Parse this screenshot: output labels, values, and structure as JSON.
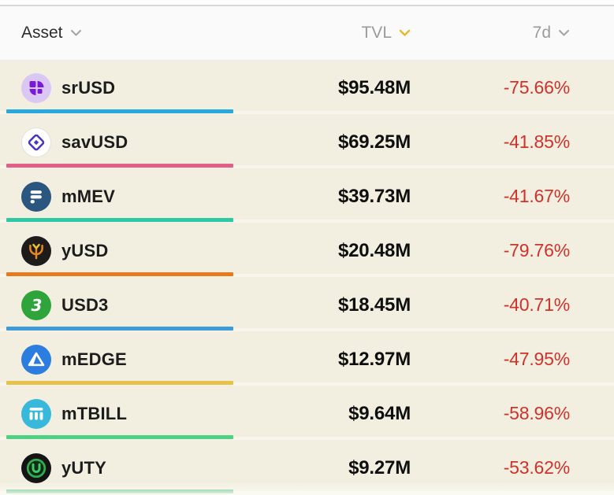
{
  "columns": [
    {
      "label": "Asset",
      "sort_icon": "chevron-down-icon",
      "sort_active": false
    },
    {
      "label": "TVL",
      "sort_icon": "chevron-down-icon",
      "sort_active": true
    },
    {
      "label": "7d",
      "sort_icon": "chevron-down-icon",
      "sort_active": false
    }
  ],
  "rows": [
    {
      "name": "srUSD",
      "tvl": "$95.48M",
      "change_7d": "-75.66%",
      "underline_color": "#29a8e0",
      "icon": "srusd-logo",
      "icon_bg": "#dbc7f3",
      "icon_fg": "#7a1ad8"
    },
    {
      "name": "savUSD",
      "tvl": "$69.25M",
      "change_7d": "-41.85%",
      "underline_color": "#e25e84",
      "icon": "savusd-logo",
      "icon_bg": "#ffffff",
      "icon_fg": "#4836c0"
    },
    {
      "name": "mMEV",
      "tvl": "$39.73M",
      "change_7d": "-41.67%",
      "underline_color": "#2dc9a2",
      "icon": "mmev-logo",
      "icon_bg": "#2b5680",
      "icon_fg": "#ffffff"
    },
    {
      "name": "yUSD",
      "tvl": "$20.48M",
      "change_7d": "-79.76%",
      "underline_color": "#e67a1e",
      "icon": "yusd-logo",
      "icon_bg": "#1d1c1a",
      "icon_fg": "#e8871f"
    },
    {
      "name": "USD3",
      "tvl": "$18.45M",
      "change_7d": "-40.71%",
      "underline_color": "#3d9bd9",
      "icon": "usd3-logo",
      "icon_bg": "#2ea43a",
      "icon_fg": "#ffffff"
    },
    {
      "name": "mEDGE",
      "tvl": "$12.97M",
      "change_7d": "-47.95%",
      "underline_color": "#e7c247",
      "icon": "medge-logo",
      "icon_bg": "#2b7de0",
      "icon_fg": "#ffffff"
    },
    {
      "name": "mTBILL",
      "tvl": "$9.64M",
      "change_7d": "-58.96%",
      "underline_color": "#4fd184",
      "icon": "mtbill-logo",
      "icon_bg": "#38b9dc",
      "icon_fg": "#ffffff"
    },
    {
      "name": "yUTY",
      "tvl": "$9.27M",
      "change_7d": "-53.62%",
      "underline_color": "#3bb868",
      "icon": "yuty-logo",
      "icon_bg": "#141414",
      "icon_fg": "#35b956"
    }
  ],
  "colors": {
    "negative_change": "#d0322b",
    "row_background": "#f2efe0",
    "header_background": "#fafafa",
    "header_text": "#9b9b9b",
    "active_sort_chevron": "#e3ba2b",
    "tvl_text": "#0f0f0f"
  }
}
